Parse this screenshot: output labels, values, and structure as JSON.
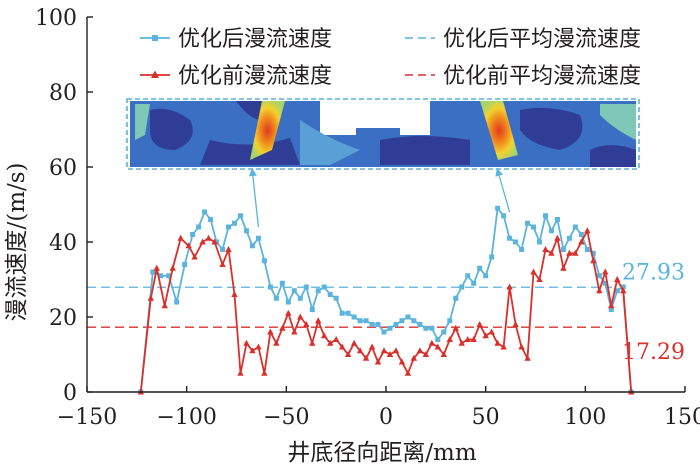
{
  "chart_data": {
    "type": "line",
    "xlabel": "井底径向距离/mm",
    "ylabel": "漫流速度/(m/s)",
    "xlim": [
      -150,
      150
    ],
    "ylim": [
      0,
      100
    ],
    "xticks": [
      "−150",
      "−100",
      "−50",
      "0",
      "50",
      "100",
      "150"
    ],
    "yticks": [
      "0",
      "20",
      "40",
      "60",
      "80",
      "100"
    ],
    "grid": false,
    "legend_position": "top",
    "colors": {
      "after": "#5ab4dc",
      "before": "#d9302b",
      "inset_border": "#5ab4dc"
    },
    "series": [
      {
        "name": "优化后漫流速度",
        "color": "#5ab4dc",
        "marker": "square",
        "x": [
          -123,
          -117,
          -113,
          -109,
          -105,
          -101,
          -97,
          -94,
          -91,
          -88,
          -85,
          -82,
          -79,
          -76,
          -73,
          -70,
          -67,
          -64,
          -61,
          -58,
          -55,
          -52,
          -49,
          -46,
          -43,
          -40,
          -37,
          -34,
          -31,
          -28,
          -25,
          -22,
          -19,
          -16,
          -13,
          -10,
          -7,
          -4,
          -1,
          2,
          5,
          8,
          11,
          14,
          17,
          20,
          23,
          26,
          29,
          32,
          35,
          38,
          41,
          44,
          47,
          50,
          53,
          56,
          59,
          62,
          65,
          68,
          71,
          74,
          77,
          80,
          83,
          86,
          89,
          92,
          95,
          98,
          101,
          104,
          107,
          110,
          113,
          116,
          119,
          123
        ],
        "y": [
          0,
          32,
          31,
          31,
          24,
          34,
          42,
          44,
          48,
          46,
          40,
          38,
          44,
          45,
          47,
          43,
          39,
          41,
          35,
          28,
          25,
          29,
          24,
          27,
          25,
          28,
          22,
          27,
          28,
          26,
          25,
          21,
          21,
          20,
          19,
          19,
          18,
          18,
          16,
          17,
          18,
          19,
          20,
          19,
          18,
          17,
          17,
          14,
          16,
          19,
          25,
          28,
          31,
          29,
          33,
          31,
          36,
          49,
          47,
          41,
          40,
          38,
          45,
          44,
          40,
          47,
          43,
          46,
          38,
          41,
          44,
          42,
          38,
          37,
          31,
          29,
          22,
          27,
          28,
          0
        ]
      },
      {
        "name": "优化前漫流速度",
        "color": "#d9302b",
        "marker": "triangle",
        "x": [
          -123,
          -118,
          -115,
          -111,
          -107,
          -103,
          -99,
          -96,
          -92,
          -89,
          -86,
          -82,
          -79,
          -76,
          -73,
          -70,
          -67,
          -64,
          -61,
          -58,
          -55,
          -52,
          -49,
          -46,
          -43,
          -40,
          -37,
          -34,
          -31,
          -28,
          -25,
          -22,
          -19,
          -16,
          -13,
          -10,
          -7,
          -4,
          -1,
          2,
          5,
          8,
          11,
          14,
          17,
          20,
          23,
          26,
          29,
          32,
          35,
          38,
          41,
          44,
          47,
          50,
          53,
          56,
          59,
          62,
          65,
          68,
          71,
          74,
          77,
          80,
          83,
          86,
          89,
          92,
          95,
          98,
          101,
          104,
          107,
          110,
          113,
          116,
          119,
          123
        ],
        "y": [
          0,
          25,
          33,
          23,
          33,
          41,
          39,
          36,
          40,
          41,
          40,
          34,
          38,
          26,
          5,
          13,
          11,
          12,
          5,
          16,
          13,
          17,
          21,
          16,
          20,
          18,
          13,
          19,
          15,
          13,
          14,
          12,
          10,
          13,
          11,
          9,
          12,
          8,
          11,
          10,
          11,
          8,
          5,
          9,
          11,
          10,
          13,
          12,
          10,
          14,
          17,
          13,
          14,
          14,
          18,
          15,
          16,
          13,
          12,
          28,
          18,
          12,
          9,
          32,
          30,
          38,
          37,
          41,
          33,
          37,
          37,
          40,
          43,
          35,
          27,
          32,
          23,
          30,
          27,
          0
        ]
      },
      {
        "name": "优化后平均漫流速度",
        "color": "#5ab4dc",
        "style": "dashed",
        "value": 27.93,
        "label": "27.93"
      },
      {
        "name": "优化前平均漫流速度",
        "color": "#d9302b",
        "style": "dashed",
        "value": 17.29,
        "label": "17.29"
      }
    ],
    "annotations": [
      {
        "type": "inset-image",
        "description_colors": [
          "#2f3d96",
          "#3b6fc3",
          "#5aa0d6",
          "#7fc8b8",
          "#a8d46a",
          "#f2d22e",
          "#f08a1e",
          "#e03a1e"
        ]
      },
      {
        "type": "arrow",
        "from_x": -64,
        "from_y": 44,
        "to_inset": "left-hotspot"
      },
      {
        "type": "arrow",
        "from_x": 62,
        "from_y": 48,
        "to_inset": "right-hotspot"
      }
    ]
  }
}
